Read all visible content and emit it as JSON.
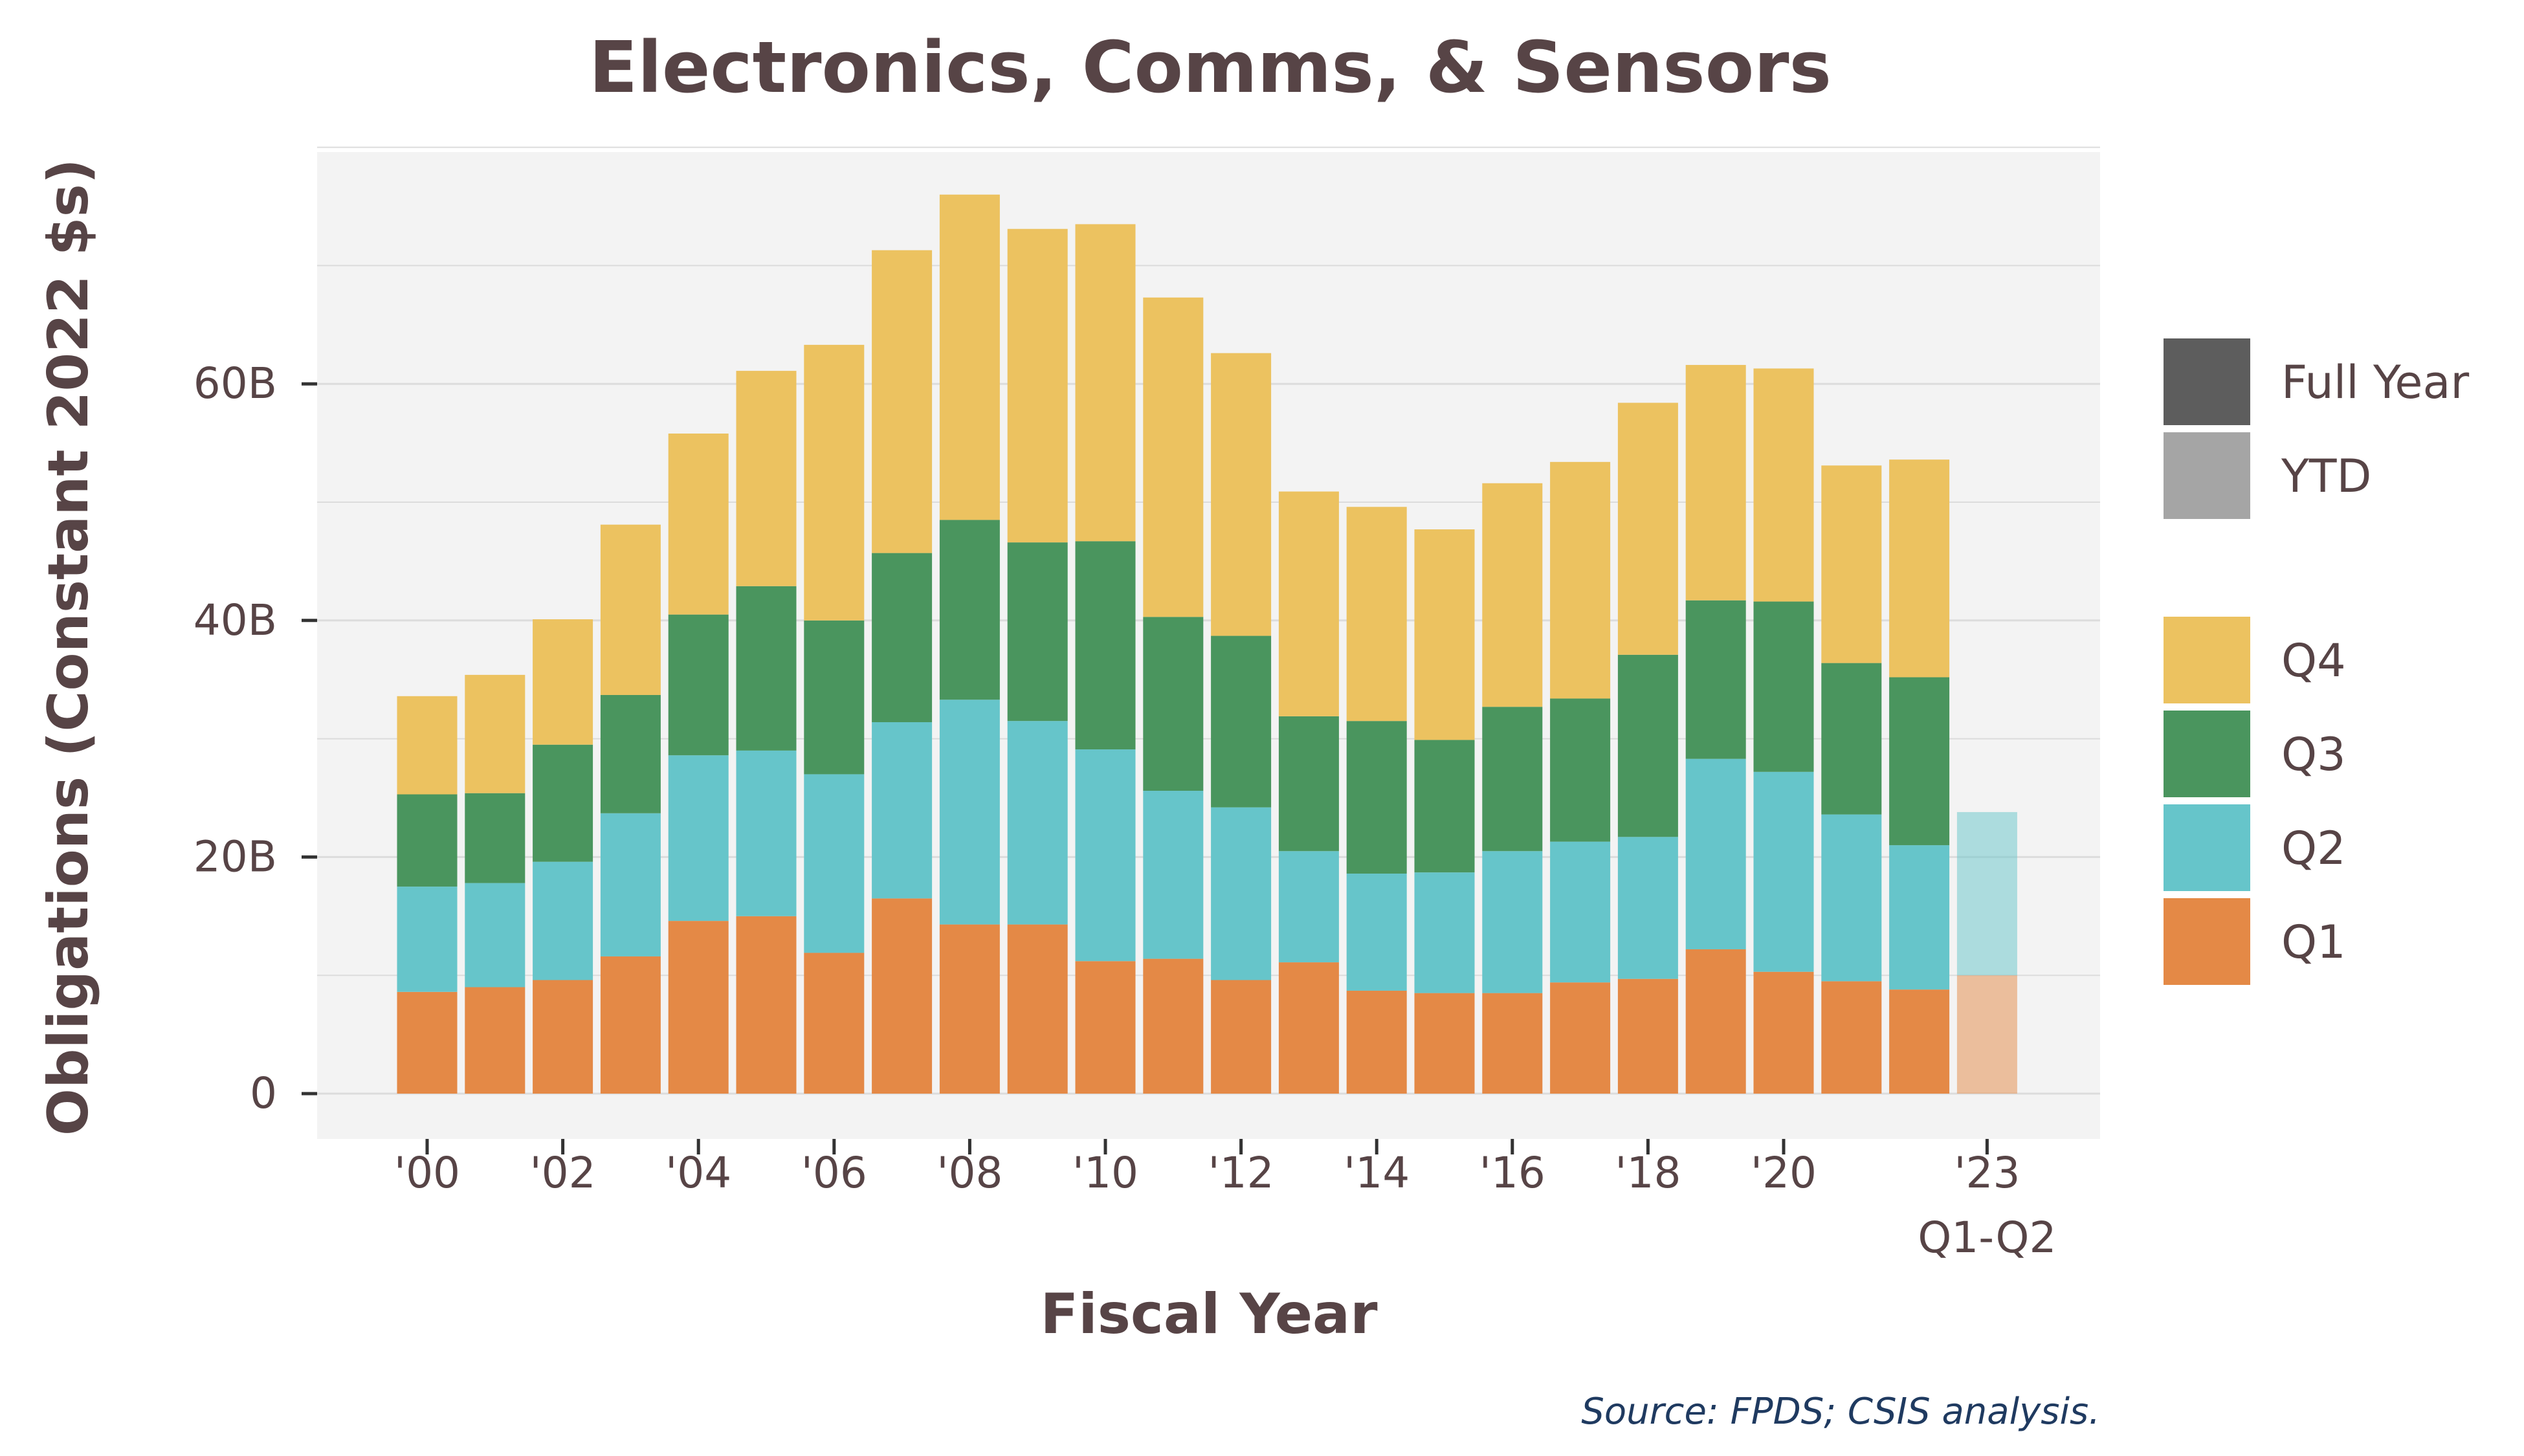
{
  "chart_data": {
    "type": "bar",
    "stacked": true,
    "title": "Electronics, Comms, & Sensors",
    "xlabel": "Fiscal Year",
    "ylabel": "Obligations (Constant 2022 $s)",
    "source": "Source: FPDS; CSIS analysis.",
    "ylim": [
      0,
      80
    ],
    "y_unit": "billions",
    "y_ticks": [
      0,
      20,
      40,
      60
    ],
    "y_tick_labels": [
      "0",
      "20B",
      "40B",
      "60B"
    ],
    "grid": true,
    "legend_position": "right",
    "categories": [
      "2000",
      "2001",
      "2002",
      "2003",
      "2004",
      "2005",
      "2006",
      "2007",
      "2008",
      "2009",
      "2010",
      "2011",
      "2012",
      "2013",
      "2014",
      "2015",
      "2016",
      "2017",
      "2018",
      "2019",
      "2020",
      "2021",
      "2022",
      "2023 Q1-Q2"
    ],
    "x_tick_labels": [
      {
        "index": 0,
        "label": "'00"
      },
      {
        "index": 2,
        "label": "'02"
      },
      {
        "index": 4,
        "label": "'04"
      },
      {
        "index": 6,
        "label": "'06"
      },
      {
        "index": 8,
        "label": "'08"
      },
      {
        "index": 10,
        "label": "'10"
      },
      {
        "index": 12,
        "label": "'12"
      },
      {
        "index": 14,
        "label": "'14"
      },
      {
        "index": 16,
        "label": "'16"
      },
      {
        "index": 18,
        "label": "'18"
      },
      {
        "index": 20,
        "label": "'20"
      },
      {
        "index": 23,
        "label": "'23",
        "sublabel": "Q1-Q2"
      }
    ],
    "period_type": [
      "Full Year",
      "Full Year",
      "Full Year",
      "Full Year",
      "Full Year",
      "Full Year",
      "Full Year",
      "Full Year",
      "Full Year",
      "Full Year",
      "Full Year",
      "Full Year",
      "Full Year",
      "Full Year",
      "Full Year",
      "Full Year",
      "Full Year",
      "Full Year",
      "Full Year",
      "Full Year",
      "Full Year",
      "Full Year",
      "Full Year",
      "YTD"
    ],
    "series": [
      {
        "name": "Q1",
        "color": "#e48946",
        "values": [
          8.6,
          9.0,
          9.6,
          11.6,
          14.6,
          15.0,
          11.9,
          16.5,
          14.3,
          14.3,
          11.2,
          11.4,
          9.6,
          11.1,
          8.7,
          8.5,
          8.5,
          9.4,
          9.7,
          12.2,
          10.3,
          9.5,
          8.8,
          10.0
        ]
      },
      {
        "name": "Q2",
        "color": "#66c5ca",
        "values": [
          8.9,
          8.8,
          10.0,
          12.1,
          14.0,
          14.0,
          15.1,
          14.9,
          19.0,
          17.2,
          17.9,
          14.2,
          14.6,
          9.4,
          9.9,
          10.2,
          12.0,
          11.9,
          12.0,
          16.1,
          16.9,
          14.1,
          12.2,
          13.8
        ]
      },
      {
        "name": "Q3",
        "color": "#4a955e",
        "values": [
          7.8,
          7.6,
          9.9,
          10.0,
          11.9,
          13.9,
          13.0,
          14.3,
          15.2,
          15.1,
          17.6,
          14.7,
          14.5,
          11.4,
          12.9,
          11.2,
          12.2,
          12.1,
          15.4,
          13.4,
          14.4,
          12.8,
          14.2,
          0
        ]
      },
      {
        "name": "Q4",
        "color": "#ecc260",
        "values": [
          8.3,
          10.0,
          10.6,
          14.4,
          15.3,
          18.2,
          23.3,
          25.6,
          27.5,
          26.5,
          26.8,
          27.0,
          23.9,
          19.0,
          18.1,
          17.8,
          18.9,
          20.0,
          21.3,
          19.9,
          19.7,
          16.7,
          18.4,
          0
        ]
      }
    ],
    "legend_period": [
      {
        "label": "Full Year",
        "color": "#5d5d5d"
      },
      {
        "label": "YTD",
        "color": "#a5a5a5"
      }
    ],
    "legend_quarters": [
      {
        "label": "Q4",
        "color": "#ecc260"
      },
      {
        "label": "Q3",
        "color": "#4a955e"
      },
      {
        "label": "Q2",
        "color": "#66c5ca"
      },
      {
        "label": "Q1",
        "color": "#e48946"
      }
    ],
    "colors": {
      "panel_background": "#f3f3f3",
      "grid": "#dcdcdc",
      "text": "#574446",
      "source_text": "#1f3a60"
    }
  }
}
